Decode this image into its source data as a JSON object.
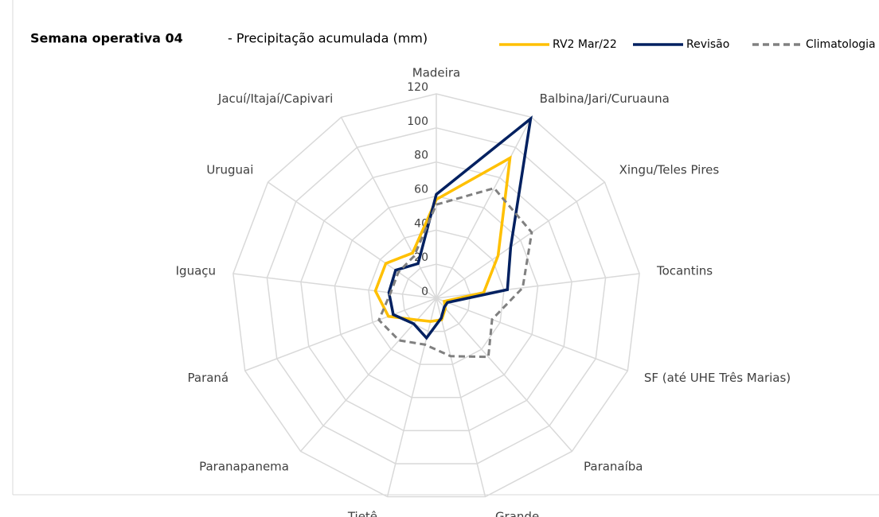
{
  "chart_data": {
    "type": "radar",
    "title": "Semana operativa 04",
    "subtitle": "- Precipitação acumulada (mm)",
    "categories": [
      "Madeira",
      "Balbina/Jari/Curuauna",
      "Xingu/Teles Pires",
      "Tocantins",
      "SF (até UHE Três Marias)",
      "Paranaíba",
      "Grande",
      "Tietê",
      "Paranapanema",
      "Paraná",
      "Iguaçu",
      "Uruguai",
      "Jacuí/Itajaí/Capivari"
    ],
    "series": [
      {
        "name": "RV2 Mar/22",
        "color": "#ffc000",
        "dash": false,
        "values": [
          58,
          93,
          44,
          28,
          5,
          8,
          13,
          14,
          17,
          30,
          36,
          36,
          30
        ]
      },
      {
        "name": "Revisão",
        "color": "#002060",
        "dash": false,
        "values": [
          61,
          119,
          53,
          42,
          7,
          7,
          12,
          24,
          20,
          27,
          28,
          29,
          23
        ]
      },
      {
        "name": "Climatologia",
        "color": "#808080",
        "dash": true,
        "values": [
          55,
          73,
          68,
          51,
          35,
          46,
          35,
          28,
          33,
          36,
          27,
          27,
          28
        ]
      }
    ],
    "ylim": [
      0,
      120
    ],
    "yticks": [
      0,
      20,
      40,
      60,
      80,
      100,
      120
    ],
    "grid": true
  }
}
